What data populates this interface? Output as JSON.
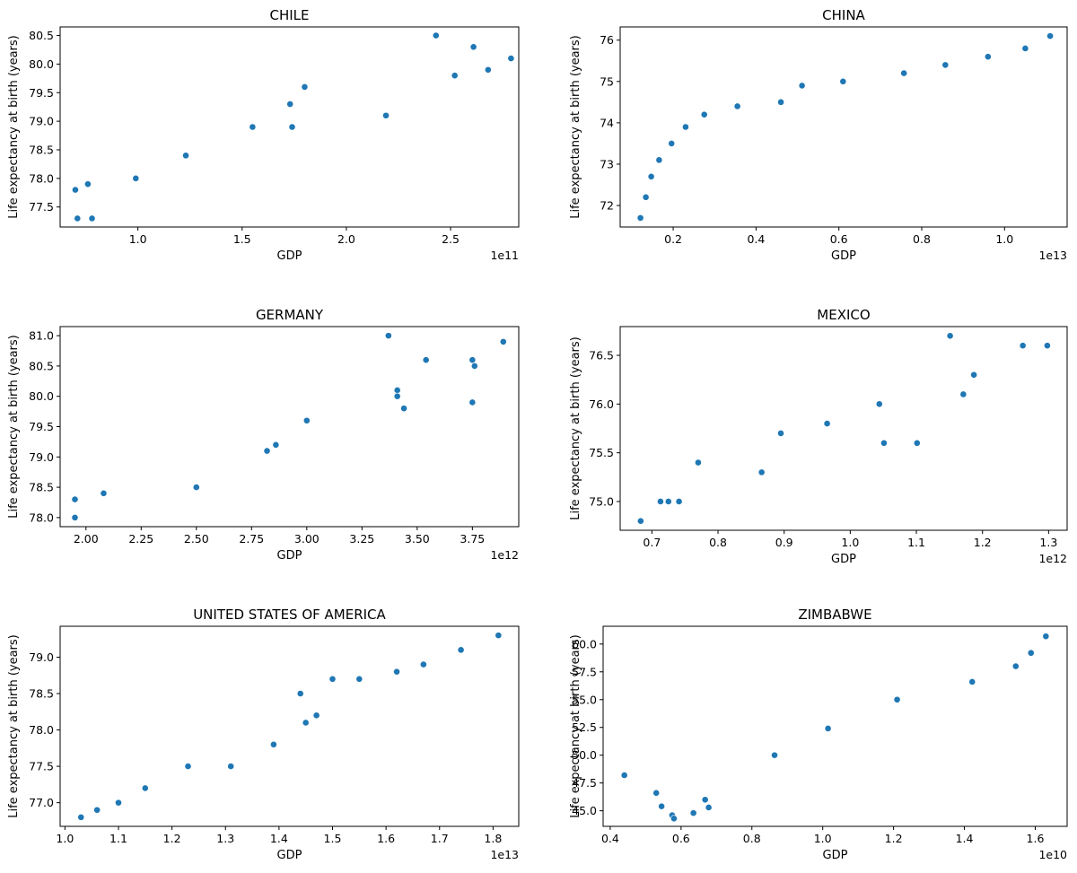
{
  "figure": {
    "ylabel_all": "Life expectancy at birth (years)",
    "xlabel_all": "GDP"
  },
  "marker_color": "#1f77b4",
  "chart_data": [
    {
      "type": "scatter",
      "title": "CHILE",
      "xlabel": "GDP",
      "ylabel": "Life expectancy at birth (years)",
      "x_multiplier_label": "1e11",
      "x_scale": 100000000000.0,
      "xlim": [
        0.627,
        2.827
      ],
      "ylim": [
        77.15,
        80.65
      ],
      "x_ticks": [
        1.0,
        1.5,
        2.0,
        2.5
      ],
      "x_tick_labels": [
        "1.0",
        "1.5",
        "2.0",
        "2.5"
      ],
      "y_ticks": [
        77.5,
        78.0,
        78.5,
        79.0,
        79.5,
        80.0,
        80.5
      ],
      "y_tick_labels": [
        "77.5",
        "78.0",
        "78.5",
        "79.0",
        "79.5",
        "80.0",
        "80.5"
      ],
      "x": [
        0.7,
        0.71,
        0.76,
        0.78,
        0.99,
        1.23,
        1.55,
        1.73,
        1.74,
        1.8,
        2.19,
        2.43,
        2.52,
        2.61,
        2.68,
        2.79
      ],
      "y": [
        77.8,
        77.3,
        77.9,
        77.3,
        78.0,
        78.4,
        78.9,
        79.3,
        78.9,
        79.6,
        79.1,
        80.5,
        79.8,
        80.3,
        79.9,
        80.1
      ]
    },
    {
      "type": "scatter",
      "title": "CHINA",
      "xlabel": "GDP",
      "ylabel": "Life expectancy at birth (years)",
      "x_multiplier_label": "1e13",
      "x_scale": 10000000000000.0,
      "xlim": [
        0.072,
        1.151
      ],
      "ylim": [
        71.48,
        76.32
      ],
      "x_ticks": [
        0.2,
        0.4,
        0.6,
        0.8,
        1.0
      ],
      "x_tick_labels": [
        "0.2",
        "0.4",
        "0.6",
        "0.8",
        "1.0"
      ],
      "y_ticks": [
        72,
        73,
        74,
        75,
        76
      ],
      "y_tick_labels": [
        "72",
        "73",
        "74",
        "75",
        "76"
      ],
      "x": [
        0.121,
        0.134,
        0.147,
        0.166,
        0.196,
        0.23,
        0.275,
        0.355,
        0.46,
        0.511,
        0.61,
        0.757,
        0.857,
        0.96,
        1.05,
        1.11
      ],
      "y": [
        71.7,
        72.2,
        72.7,
        73.1,
        73.5,
        73.9,
        74.2,
        74.4,
        74.5,
        74.9,
        75.0,
        75.2,
        75.4,
        75.6,
        75.8,
        76.1
      ]
    },
    {
      "type": "scatter",
      "title": "GERMANY",
      "xlabel": "GDP",
      "ylabel": "Life expectancy at birth (years)",
      "x_multiplier_label": "1e12",
      "x_scale": 1000000000000.0,
      "xlim": [
        1.883,
        3.96
      ],
      "ylim": [
        77.85,
        81.15
      ],
      "x_ticks": [
        2.0,
        2.25,
        2.5,
        2.75,
        3.0,
        3.25,
        3.5,
        3.75
      ],
      "x_tick_labels": [
        "2.00",
        "2.25",
        "2.50",
        "2.75",
        "3.00",
        "3.25",
        "3.50",
        "3.75"
      ],
      "y_ticks": [
        78.0,
        78.5,
        79.0,
        79.5,
        80.0,
        80.5,
        81.0
      ],
      "y_tick_labels": [
        "78.0",
        "78.5",
        "79.0",
        "79.5",
        "80.0",
        "80.5",
        "81.0"
      ],
      "x": [
        1.95,
        1.95,
        2.08,
        2.5,
        2.82,
        2.86,
        3.0,
        3.37,
        3.41,
        3.41,
        3.44,
        3.54,
        3.75,
        3.75,
        3.76,
        3.89
      ],
      "y": [
        78.3,
        78.0,
        78.4,
        78.5,
        79.1,
        79.2,
        79.6,
        81.0,
        80.1,
        80.0,
        79.8,
        80.6,
        80.6,
        79.9,
        80.5,
        80.9
      ]
    },
    {
      "type": "scatter",
      "title": "MEXICO",
      "xlabel": "GDP",
      "ylabel": "Life expectancy at birth (years)",
      "x_multiplier_label": "1e12",
      "x_scale": 1000000000000.0,
      "xlim": [
        0.652,
        1.328
      ],
      "ylim": [
        74.705,
        76.795
      ],
      "x_ticks": [
        0.7,
        0.8,
        0.9,
        1.0,
        1.1,
        1.2,
        1.3
      ],
      "x_tick_labels": [
        "0.7",
        "0.8",
        "0.9",
        "1.0",
        "1.1",
        "1.2",
        "1.3"
      ],
      "y_ticks": [
        75.0,
        75.5,
        76.0,
        76.5
      ],
      "y_tick_labels": [
        "75.0",
        "75.5",
        "76.0",
        "76.5"
      ],
      "x": [
        0.683,
        0.713,
        0.725,
        0.741,
        0.77,
        0.866,
        0.895,
        0.965,
        1.044,
        1.051,
        1.101,
        1.151,
        1.171,
        1.187,
        1.261,
        1.298
      ],
      "y": [
        74.8,
        75.0,
        75.0,
        75.0,
        75.4,
        75.3,
        75.7,
        75.8,
        76.0,
        75.6,
        75.6,
        76.7,
        76.1,
        76.3,
        76.6,
        76.6
      ]
    },
    {
      "type": "scatter",
      "title": "UNITED STATES OF AMERICA",
      "xlabel": "GDP",
      "ylabel": "Life expectancy at birth (years)",
      "x_multiplier_label": "1e13",
      "x_scale": 10000000000000.0,
      "xlim": [
        0.991,
        1.848
      ],
      "ylim": [
        76.675,
        79.425
      ],
      "x_ticks": [
        1.0,
        1.1,
        1.2,
        1.3,
        1.4,
        1.5,
        1.6,
        1.7,
        1.8
      ],
      "x_tick_labels": [
        "1.0",
        "1.1",
        "1.2",
        "1.3",
        "1.4",
        "1.5",
        "1.6",
        "1.7",
        "1.8"
      ],
      "y_ticks": [
        77.0,
        77.5,
        78.0,
        78.5,
        79.0
      ],
      "y_tick_labels": [
        "77.0",
        "77.5",
        "78.0",
        "78.5",
        "79.0"
      ],
      "x": [
        1.03,
        1.06,
        1.1,
        1.15,
        1.23,
        1.31,
        1.39,
        1.44,
        1.45,
        1.47,
        1.5,
        1.55,
        1.62,
        1.67,
        1.74,
        1.81
      ],
      "y": [
        76.8,
        76.9,
        77.0,
        77.2,
        77.5,
        77.5,
        77.8,
        78.5,
        78.1,
        78.2,
        78.7,
        78.7,
        78.8,
        78.9,
        79.1,
        79.3
      ]
    },
    {
      "type": "scatter",
      "title": "ZIMBABWE",
      "xlabel": "GDP",
      "ylabel": "Life expectancy at birth (years)",
      "x_multiplier_label": "1e10",
      "x_scale": 10000000000.0,
      "xlim": [
        0.38,
        1.69
      ],
      "ylim": [
        43.6,
        61.6
      ],
      "x_ticks": [
        0.4,
        0.6,
        0.8,
        1.0,
        1.2,
        1.4,
        1.6
      ],
      "x_tick_labels": [
        "0.4",
        "0.6",
        "0.8",
        "1.0",
        "1.2",
        "1.4",
        "1.6"
      ],
      "y_ticks": [
        45.0,
        47.5,
        50.0,
        52.5,
        55.0,
        57.5,
        60.0
      ],
      "y_tick_labels": [
        "45.0",
        "47.5",
        "50.0",
        "52.5",
        "55.0",
        "57.5",
        "60.0"
      ],
      "x": [
        0.44,
        0.53,
        0.545,
        0.575,
        0.58,
        0.635,
        0.668,
        0.678,
        0.864,
        1.015,
        1.21,
        1.422,
        1.545,
        1.588,
        1.63
      ],
      "y": [
        48.2,
        46.6,
        45.4,
        44.6,
        44.3,
        44.8,
        46.0,
        45.3,
        50.0,
        52.4,
        55.0,
        56.6,
        58.0,
        59.2,
        60.7
      ]
    }
  ]
}
